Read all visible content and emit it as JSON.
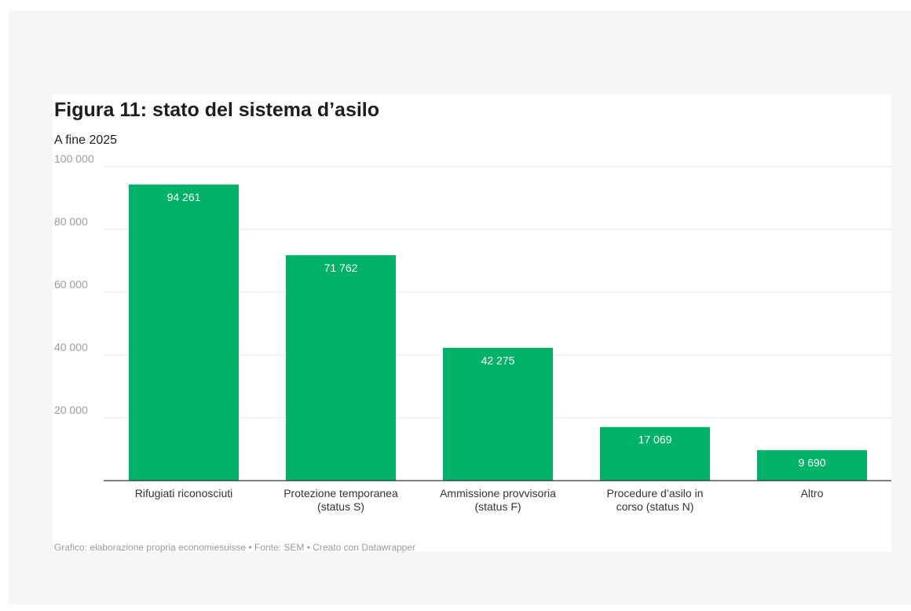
{
  "page": {
    "title": "Figura 11: stato del sistema d’asilo",
    "subtitle": "A fine 2025",
    "footer": {
      "credit": "Grafico: elaborazione propria economiesuisse",
      "source": "Fonte: SEM",
      "tool": "Creato con Datawrapper",
      "separator": "•"
    }
  },
  "colors": {
    "bar": "#00b268",
    "gridline": "#e8e8e8",
    "axis": "#333333",
    "tick_label": "#9b9b9b",
    "value_label": "#ffffff"
  },
  "chart_data": {
    "type": "bar",
    "title": "Figura 11: stato del sistema d’asilo",
    "subtitle": "A fine 2025",
    "categories": [
      [
        "Rifugiati riconosciuti"
      ],
      [
        "Protezione temporanea",
        "(status S)"
      ],
      [
        "Ammissione provvisoria",
        "(status F)"
      ],
      [
        "Procedure d’asilo in",
        "corso (status N)"
      ],
      [
        "Altro"
      ]
    ],
    "values": [
      94261,
      71762,
      42275,
      17069,
      9690
    ],
    "value_labels": [
      "94 261",
      "71 762",
      "42 275",
      "17 069",
      "9 690"
    ],
    "ylim": [
      0,
      100000
    ],
    "yticks": [
      20000,
      40000,
      60000,
      80000,
      100000
    ],
    "ytick_labels": [
      "20 000",
      "40 000",
      "60 000",
      "80 000",
      "100 000"
    ],
    "grid": true,
    "legend": "none"
  }
}
